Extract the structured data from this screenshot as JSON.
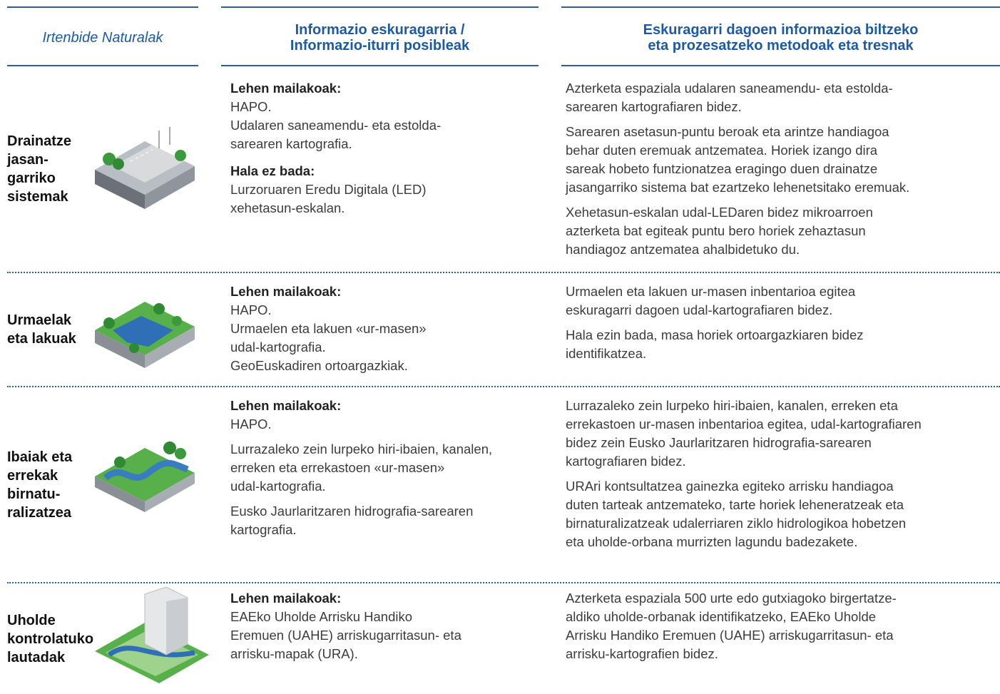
{
  "header": {
    "columns": [
      [
        "Irtenbide Naturalak"
      ],
      [
        "Informazio eskuragarria /",
        "Informazio-iturri posibleak"
      ],
      [
        "Eskuragarri dagoen informazioa biltzeko",
        "eta prozesatzeko metodoak eta tresnak"
      ]
    ]
  },
  "rows": [
    {
      "name": [
        "Drainatze",
        "jasan-",
        "garriko",
        "sistemak"
      ],
      "sources": [
        {
          "heading": "Lehen mailakoak:",
          "paragraphs": [
            [
              "HAPO."
            ],
            [
              "Udalaren saneamendu- eta estolda-",
              "sarearen kartografia."
            ]
          ]
        },
        {
          "heading": "Hala ez bada:",
          "paragraphs": [
            [
              "Lurzoruaren Eredu Digitala (LED)",
              "xehetasun-eskalan."
            ]
          ]
        }
      ],
      "methods": [
        [
          "Azterketa espaziala udalaren saneamendu- eta estolda-",
          "sarearen kartografiaren bidez."
        ],
        [
          "Sarearen asetasun-puntu beroak eta arintze handiagoa",
          "behar duten eremuak antzematea. Horiek izango dira",
          "sareak hobeto funtzionatzea eragingo duen drainatze",
          "jasangarriko sistema bat ezartzeko lehenetsitako eremuak."
        ],
        [
          "Xehetasun-eskalan udal-LEDaren bidez mikroarroen",
          "azterketa bat egiteak puntu bero horiek zehaztasun",
          "handiagoz antzematea ahalbidetuko du."
        ]
      ]
    },
    {
      "name": [
        "Urmaelak",
        "eta lakuak"
      ],
      "sources": [
        {
          "heading": "Lehen mailakoak:",
          "paragraphs": [
            [
              "HAPO."
            ],
            [
              "Urmaelen eta lakuen «ur-masen»",
              "udal-kartografia."
            ],
            [
              "GeoEuskadiren ortoargazkiak."
            ]
          ]
        }
      ],
      "methods": [
        [
          "Urmaelen eta lakuen ur-masen inbentarioa egitea",
          "eskuragarri dagoen udal-kartografiaren bidez."
        ],
        [
          "Hala ezin bada, masa horiek ortoargazkiaren bidez",
          "identifikatzea."
        ]
      ]
    },
    {
      "name": [
        "Ibaiak eta",
        "errekak",
        "birnatu-",
        "ralizatzea"
      ],
      "sources": [
        {
          "heading": "Lehen mailakoak:",
          "paragraphs": [
            [
              "HAPO."
            ],
            [
              "Lurrazaleko zein lurpeko hiri-ibaien, kanalen,",
              "erreken eta errekastoen «ur-masen»",
              "udal-kartografia."
            ],
            [
              "Eusko Jaurlaritzaren hidrografia-sarearen",
              "kartografia."
            ]
          ]
        }
      ],
      "methods": [
        [
          "Lurrazaleko zein lurpeko hiri-ibaien, kanalen, erreken eta",
          "errekastoen ur-masen inbentarioa egitea, udal-kartografiaren",
          "bidez zein Eusko Jaurlaritzaren hidrografia-sarearen",
          "kartografiaren bidez."
        ],
        [
          "URAri kontsultatzea gainezka egiteko arrisku handiagoa",
          "duten tarteak antzemateko, tarte horiek leheneratzeak eta",
          "birnaturalizatzeak udalerriaren ziklo hidrologikoa hobetzen",
          "eta uholde-orbana murrizten lagundu badezakete."
        ]
      ]
    },
    {
      "name": [
        "Uholde",
        "kontrolatuko",
        "lautadak"
      ],
      "sources": [
        {
          "heading": "Lehen mailakoak:",
          "paragraphs": [
            [
              "EAEko Uholde Arrisku Handiko",
              "Eremuen (UAHE) arriskugarritasun- eta",
              "arrisku-mapak (URA)."
            ]
          ]
        }
      ],
      "methods": [
        [
          "Azterketa espaziala 500 urte edo gutxiagoko birgertatze-",
          "aldiko uholde-orbanak identifikatzeko, EAEko Uholde",
          "Arrisku Handiko Eremuen (UAHE) arriskugarritasun- eta",
          "arrisku-kartografien bidez."
        ]
      ]
    }
  ]
}
